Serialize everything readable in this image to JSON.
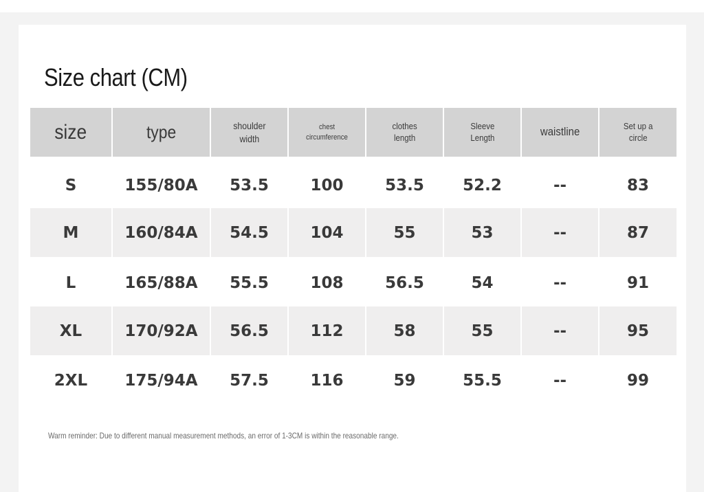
{
  "title": "Size chart (CM)",
  "table": {
    "headers": [
      {
        "label": "size"
      },
      {
        "label": "type"
      },
      {
        "label": "shoulder\nwidth"
      },
      {
        "label": "chest\ncircumference"
      },
      {
        "label": "clothes\nlength"
      },
      {
        "label": "Sleeve\nLength"
      },
      {
        "label": "waistline"
      },
      {
        "label": "Set up a\ncircle"
      }
    ],
    "rows": [
      [
        "S",
        "155/80A",
        "53.5",
        "100",
        "53.5",
        "52.2",
        "--",
        "83"
      ],
      [
        "M",
        "160/84A",
        "54.5",
        "104",
        "55",
        "53",
        "--",
        "87"
      ],
      [
        "L",
        "165/88A",
        "55.5",
        "108",
        "56.5",
        "54",
        "--",
        "91"
      ],
      [
        "XL",
        "170/92A",
        "56.5",
        "112",
        "58",
        "55",
        "--",
        "95"
      ],
      [
        "2XL",
        "175/94A",
        "57.5",
        "116",
        "59",
        "55.5",
        "--",
        "99"
      ]
    ]
  },
  "note": "Warm reminder: Due to different manual measurement methods, an error of 1-3CM is within the reasonable range.",
  "colors": {
    "header_bg": "#d3d3d3",
    "shaded_row_bg": "#efeeee",
    "text": "#3a3a3a"
  }
}
